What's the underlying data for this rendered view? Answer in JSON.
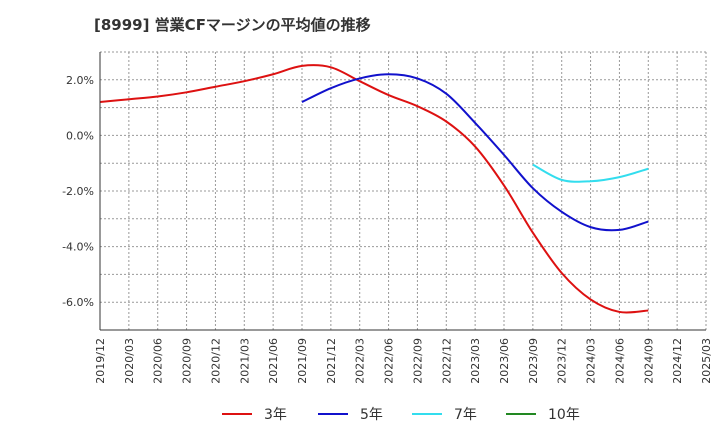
{
  "chart_data": {
    "type": "line",
    "title": "[8999]  営業CFマージンの平均値の推移",
    "xlabel": "",
    "ylabel": "",
    "x": [
      "2019/12",
      "2020/03",
      "2020/06",
      "2020/09",
      "2020/12",
      "2021/03",
      "2021/06",
      "2021/09",
      "2021/12",
      "2022/03",
      "2022/06",
      "2022/09",
      "2022/12",
      "2023/03",
      "2023/06",
      "2023/09",
      "2023/12",
      "2024/03",
      "2024/06",
      "2024/09",
      "2024/12",
      "2025/03"
    ],
    "ylim": [
      -7.0,
      3.0
    ],
    "yticks": [
      2.0,
      0.0,
      -2.0,
      -4.0,
      -6.0
    ],
    "ytick_labels": [
      "2.0%",
      "0.0%",
      "-2.0%",
      "-4.0%",
      "-6.0%"
    ],
    "grid": "dashed",
    "legend_position": "bottom",
    "series": [
      {
        "name": "3年",
        "color": "#dd1111",
        "values": [
          1.2,
          1.3,
          1.4,
          1.55,
          1.75,
          1.95,
          2.2,
          2.5,
          2.45,
          1.95,
          1.45,
          1.05,
          0.5,
          -0.4,
          -1.8,
          -3.5,
          -4.95,
          -5.9,
          -6.35,
          -6.3,
          null,
          null
        ]
      },
      {
        "name": "5年",
        "color": "#1111cc",
        "values": [
          null,
          null,
          null,
          null,
          null,
          null,
          null,
          1.2,
          1.7,
          2.05,
          2.2,
          2.05,
          1.5,
          0.45,
          -0.7,
          -1.9,
          -2.75,
          -3.3,
          -3.4,
          -3.1,
          null,
          null
        ]
      },
      {
        "name": "7年",
        "color": "#33ddee",
        "values": [
          null,
          null,
          null,
          null,
          null,
          null,
          null,
          null,
          null,
          null,
          null,
          null,
          null,
          null,
          null,
          -1.05,
          -1.6,
          -1.65,
          -1.5,
          -1.2,
          null,
          null
        ]
      },
      {
        "name": "10年",
        "color": "#228822",
        "values": [
          null,
          null,
          null,
          null,
          null,
          null,
          null,
          null,
          null,
          null,
          null,
          null,
          null,
          null,
          null,
          null,
          null,
          null,
          null,
          null,
          null,
          null
        ]
      }
    ]
  }
}
